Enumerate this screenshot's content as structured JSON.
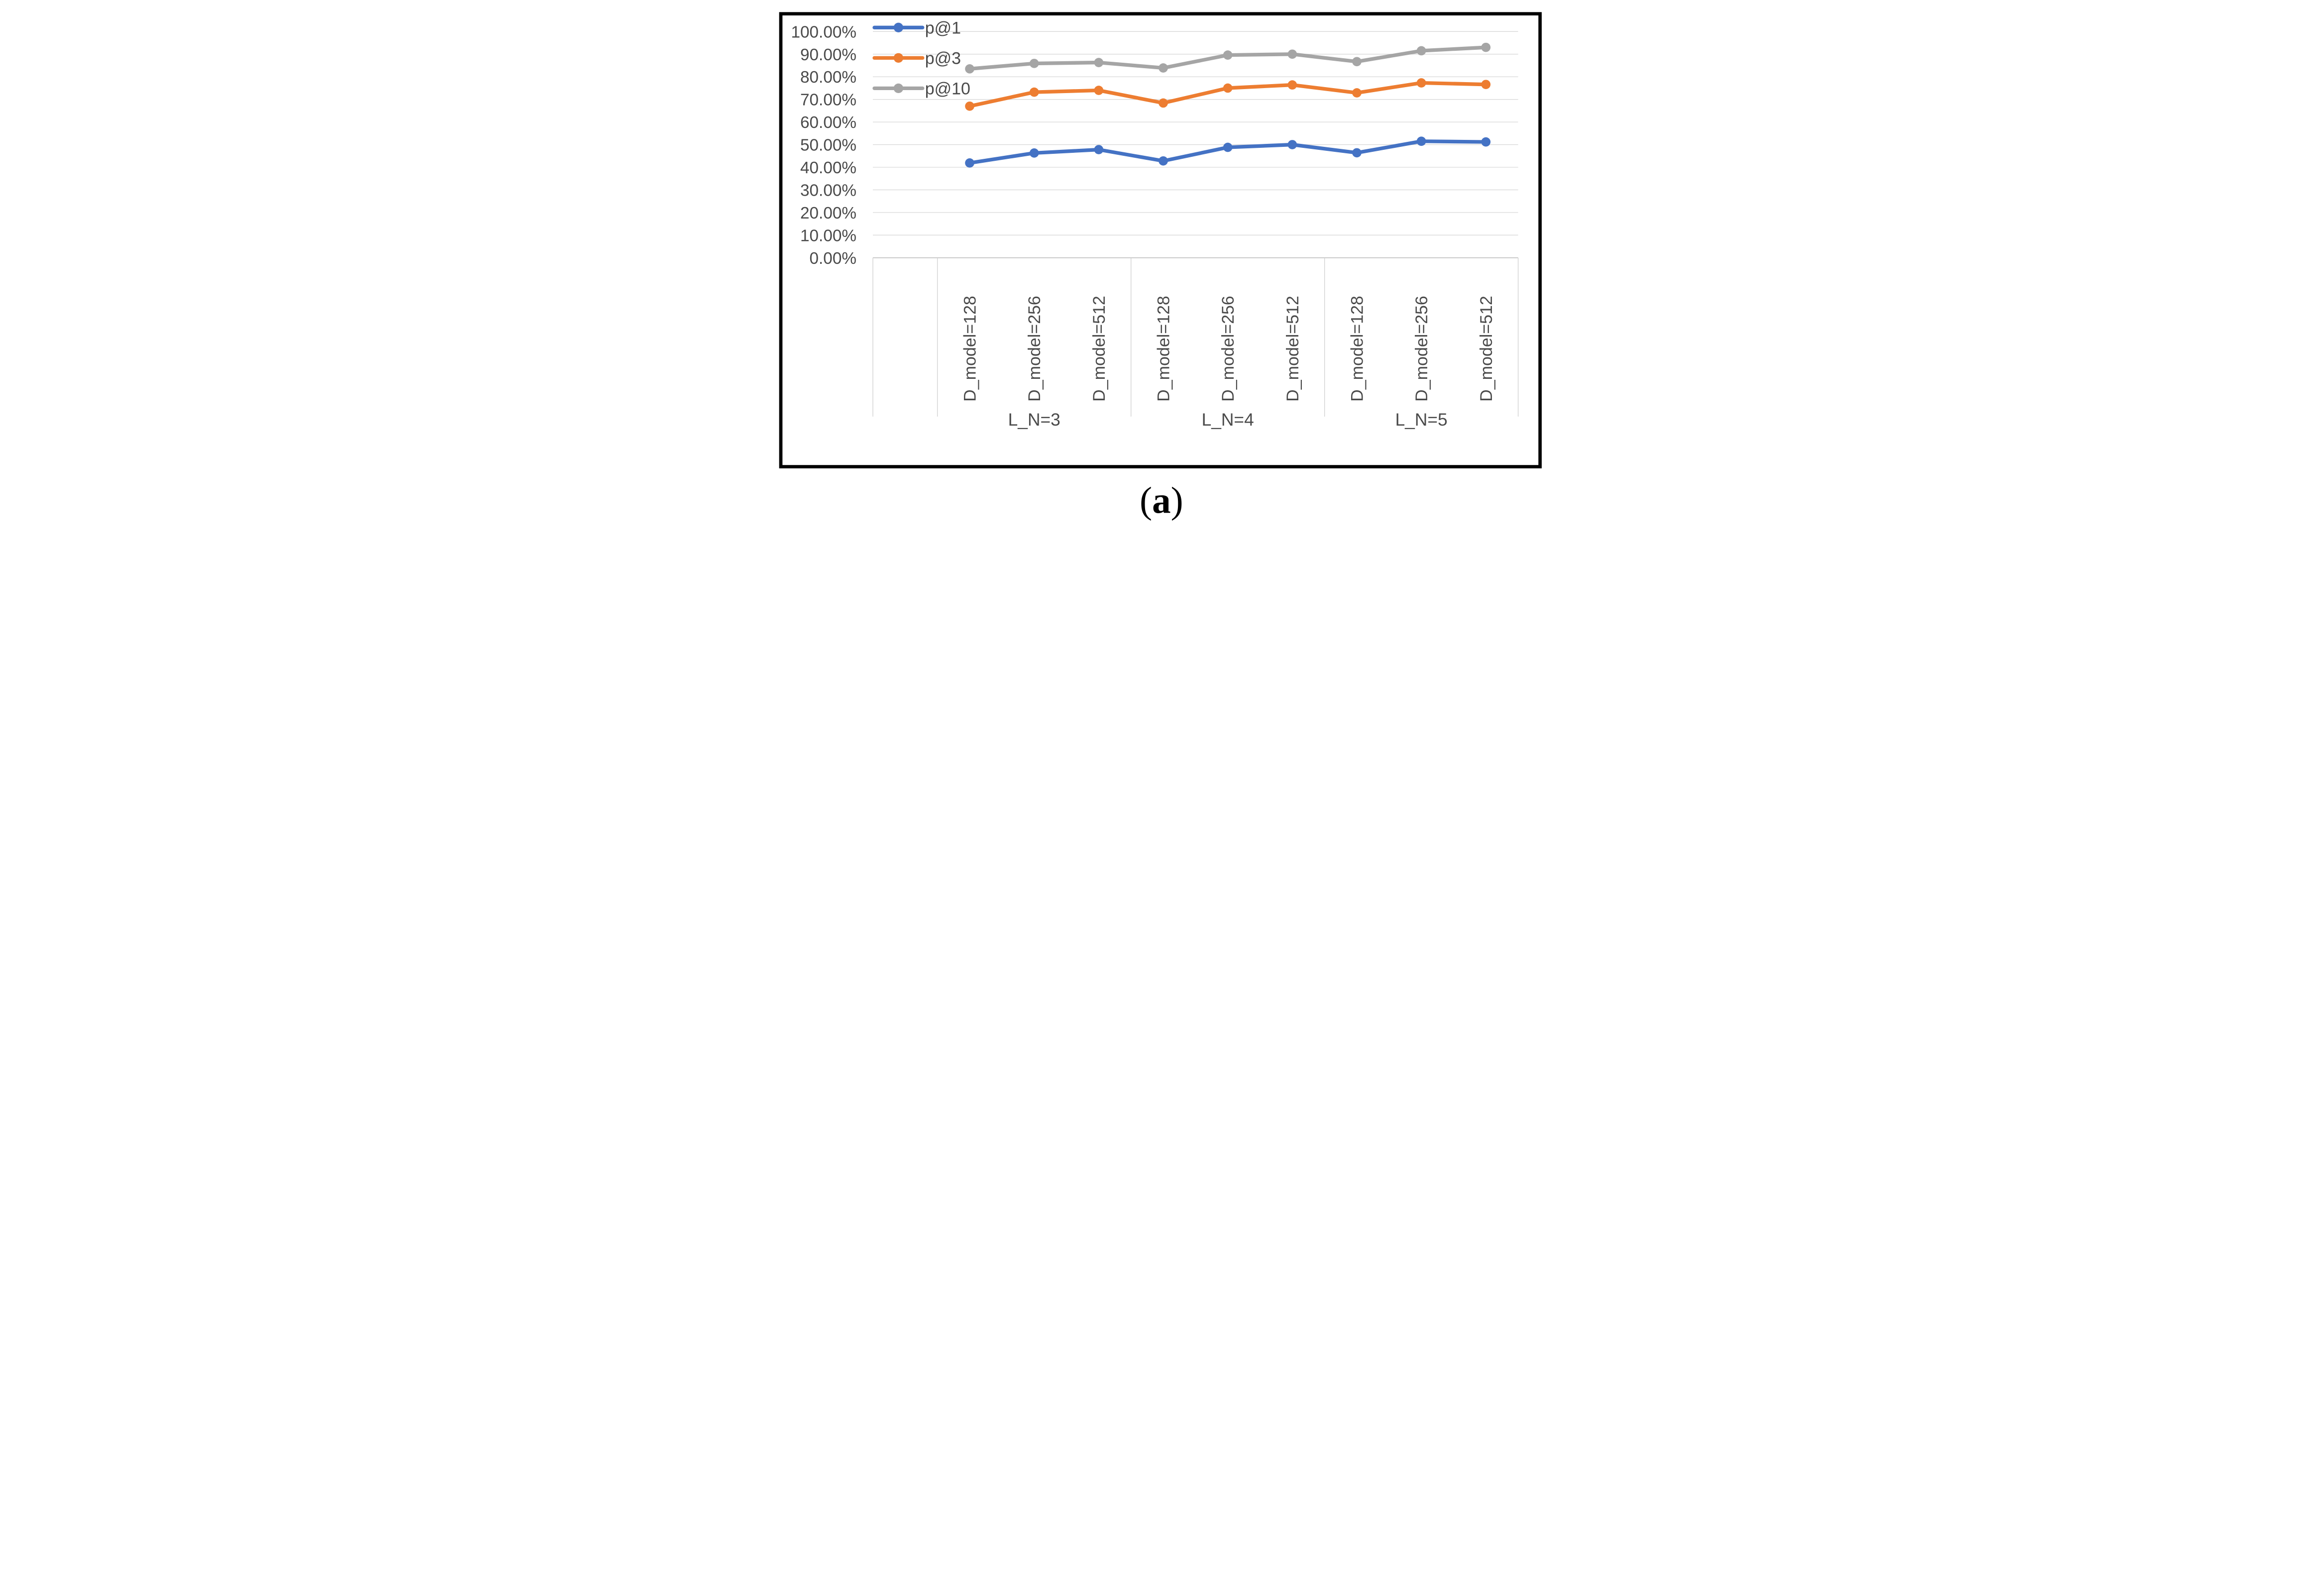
{
  "caption": {
    "open": "(",
    "letter": "a",
    "close": ")"
  },
  "chart_data": {
    "type": "line",
    "title": "",
    "grid": true,
    "legend_position": "top-left",
    "y_axis": {
      "min": 0,
      "max": 100,
      "step": 10,
      "tick_labels": [
        "0.00%",
        "10.00%",
        "20.00%",
        "30.00%",
        "40.00%",
        "50.00%",
        "60.00%",
        "70.00%",
        "80.00%",
        "90.00%",
        "100.00%"
      ]
    },
    "x_axis": {
      "has_leading_empty_slot": true,
      "categories": [
        "D_model=128",
        "D_model=256",
        "D_model=512",
        "D_model=128",
        "D_model=256",
        "D_model=512",
        "D_model=128",
        "D_model=256",
        "D_model=512"
      ],
      "group_labels": [
        "L_N=3",
        "L_N=4",
        "L_N=5"
      ]
    },
    "series": [
      {
        "name": "p@1",
        "color": "#4472C4",
        "values": [
          41.9,
          46.3,
          47.8,
          42.8,
          48.8,
          50.0,
          46.4,
          51.5,
          51.2
        ]
      },
      {
        "name": "p@3",
        "color": "#ED7D31",
        "values": [
          67.0,
          73.2,
          74.0,
          68.4,
          75.0,
          76.4,
          72.9,
          77.3,
          76.6
        ]
      },
      {
        "name": "p@10",
        "color": "#A5A5A5",
        "values": [
          83.5,
          85.9,
          86.3,
          83.9,
          89.6,
          90.0,
          86.7,
          91.5,
          93.0
        ]
      }
    ],
    "colors": {
      "gridline": "#D9D9D9",
      "axis_line": "#BFBFBF",
      "separator": "#D1D1D1",
      "label_text": "#4a4a4a",
      "border": "#000000"
    }
  }
}
